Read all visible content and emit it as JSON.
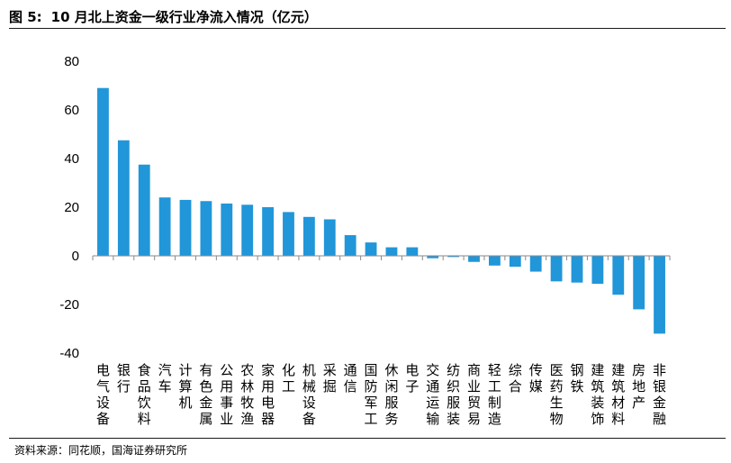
{
  "header": {
    "figure_label": "图 5:",
    "title": "10 月北上资金一级行业净流入情况（亿元）"
  },
  "footer": {
    "source": "资料来源：同花顺，国海证券研究所"
  },
  "chart_data": {
    "type": "bar",
    "title": "10 月北上资金一级行业净流入情况（亿元）",
    "xlabel": "",
    "ylabel": "",
    "ylim": [
      -40,
      80
    ],
    "yticks": [
      -40,
      -20,
      0,
      20,
      40,
      60,
      80
    ],
    "ytick_labels": [
      "-40",
      "-20",
      "0",
      "20",
      "40",
      "60",
      "80"
    ],
    "grid": false,
    "legend": "none",
    "bar_color": "#2196d9",
    "categories": [
      "电气设备",
      "银行",
      "食品饮料",
      "汽车",
      "计算机",
      "有色金属",
      "公用事业",
      "农林牧渔",
      "家用电器",
      "化工",
      "机械设备",
      "采掘",
      "通信",
      "国防军工",
      "休闲服务",
      "电子",
      "交通运输",
      "纺织服装",
      "商业贸易",
      "轻工制造",
      "综合",
      "传媒",
      "医药生物",
      "钢铁",
      "建筑装饰",
      "建筑材料",
      "房地产",
      "非银金融"
    ],
    "values": [
      69,
      47.5,
      37.5,
      24,
      23,
      22.5,
      21.5,
      21,
      20,
      18,
      16,
      15,
      8.5,
      5.5,
      3.5,
      3.5,
      -1,
      -0.5,
      -2.5,
      -4,
      -4.5,
      -6.5,
      -10.5,
      -11,
      -11.5,
      -16,
      -22,
      -32
    ]
  }
}
